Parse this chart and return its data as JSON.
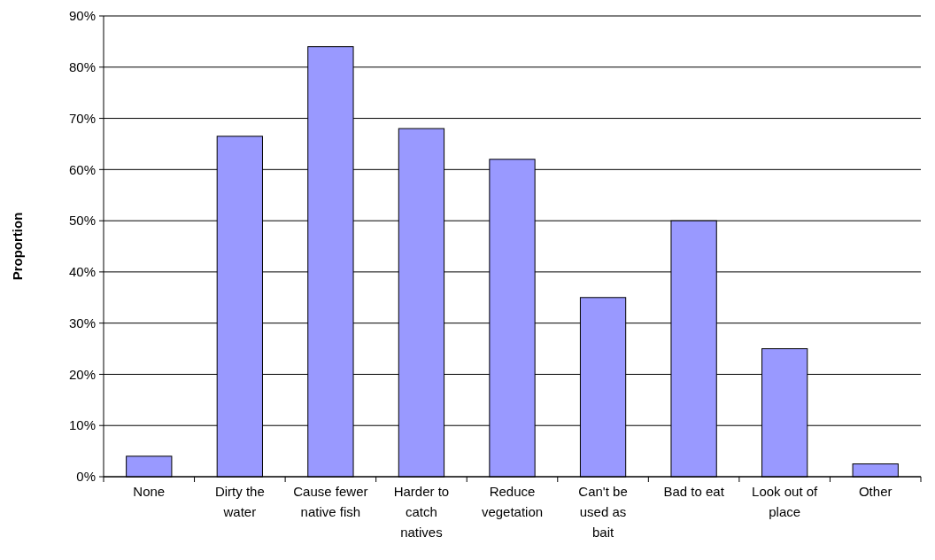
{
  "chart_data": {
    "type": "bar",
    "ylabel": "Proportion",
    "categories": [
      "None",
      "Dirty the water",
      "Cause fewer native fish",
      "Harder to catch natives",
      "Reduce vegetation",
      "Can't be used as bait",
      "Bad to eat",
      "Look out of place",
      "Other"
    ],
    "values": [
      4,
      66.5,
      84,
      68,
      62,
      35,
      50,
      25,
      2.5
    ],
    "color": "#9999ff",
    "ylim": [
      0,
      90
    ],
    "yticks": [
      {
        "value": 0,
        "label": "0%"
      },
      {
        "value": 10,
        "label": "10%"
      },
      {
        "value": 20,
        "label": "20%"
      },
      {
        "value": 30,
        "label": "30%"
      },
      {
        "value": 40,
        "label": "40%"
      },
      {
        "value": 50,
        "label": "50%"
      },
      {
        "value": 60,
        "label": "60%"
      },
      {
        "value": 70,
        "label": "70%"
      },
      {
        "value": 80,
        "label": "80%"
      },
      {
        "value": 90,
        "label": "90%"
      }
    ],
    "grid": "y"
  }
}
